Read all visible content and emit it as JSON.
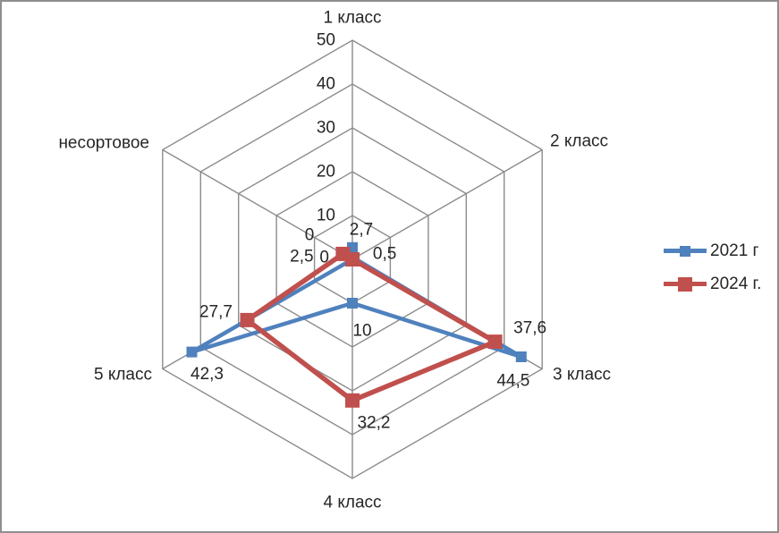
{
  "chart_data": {
    "type": "radar",
    "title": "",
    "categories": [
      "1 класс",
      "2 класс",
      "3 класс",
      "4 класс",
      "5 класс",
      "несортовое"
    ],
    "series": [
      {
        "name": "2021 г",
        "color": "#4F81BD",
        "values": [
          2.7,
          0.5,
          44.5,
          10,
          42.3,
          0
        ],
        "point_labels": [
          "2,7",
          "0,5",
          "44,5",
          "10",
          "42,3",
          "0"
        ]
      },
      {
        "name": "2024 г.",
        "color": "#C0504D",
        "values": [
          0,
          0,
          37.6,
          32.2,
          27.7,
          2.5
        ],
        "point_labels": [
          "",
          "",
          "37,6",
          "32,2",
          "27,7",
          "2,5"
        ]
      }
    ],
    "axis": {
      "min": 0,
      "max": 50,
      "step": 10,
      "tick_labels": [
        "0",
        "10",
        "20",
        "30",
        "40",
        "50"
      ]
    },
    "grid": true,
    "legend_position": "right",
    "colors": {
      "gridline": "#8C8C8C",
      "text": "#262626",
      "background": "#FFFFFF",
      "border": "#8F8F8F"
    }
  }
}
